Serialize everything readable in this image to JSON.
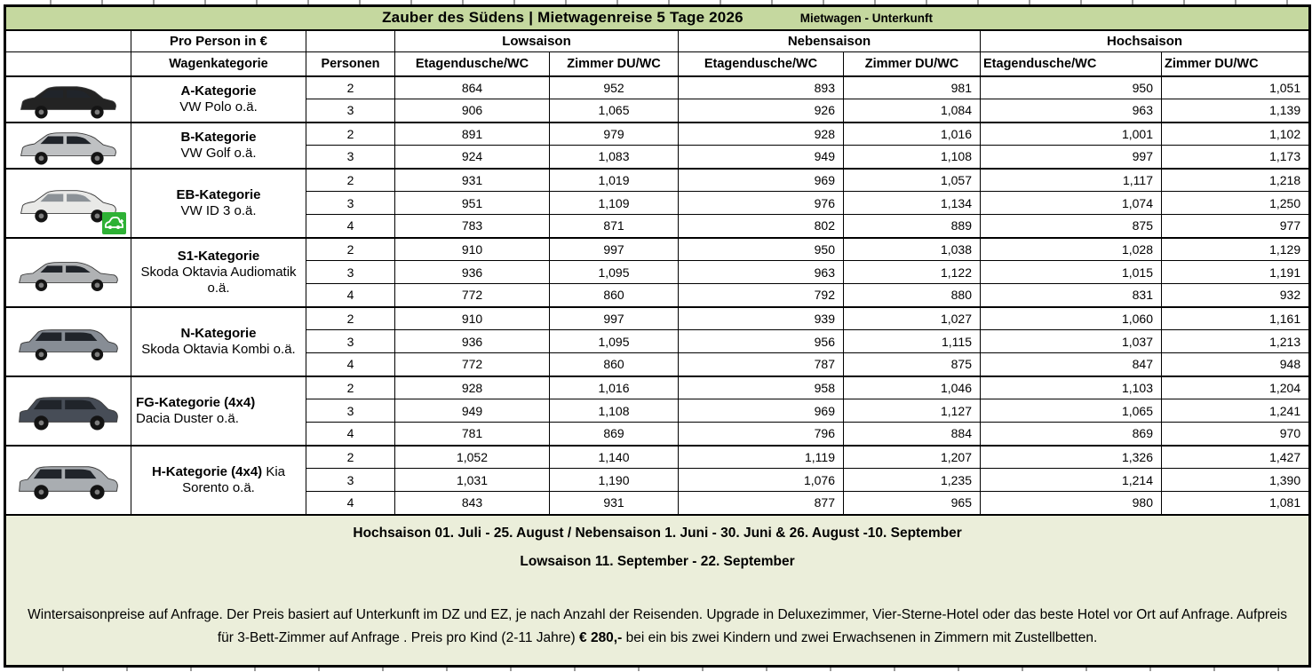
{
  "colors": {
    "band_bg": "#c5d89f",
    "footer_bg": "#ebeeda",
    "ev_green": "#2eb135",
    "grid": "#000000"
  },
  "title_band": {
    "title": "Zauber des Südens | Mietwagenreise 5 Tage  2026",
    "subtitle": "Mietwagen - Unterkunft"
  },
  "header": {
    "pro_person_label": "Pro Person in €",
    "wagenkategorie_label": "Wagenkategorie",
    "personen_label": "Personen",
    "season_labels": [
      "Lowsaison",
      "Nebensaison",
      "Hochsaison"
    ],
    "sub_labels": [
      "Etagendusche/WC",
      "Zimmer DU/WC"
    ]
  },
  "rows": [
    {
      "category": "A-Kategorie",
      "model": "VW Polo o.ä.",
      "label_align": "center",
      "inline": false,
      "ev_badge": false,
      "car": {
        "icon": "car-image-a-kategorie",
        "body": "hatchback",
        "color": "#232323"
      },
      "persons": [
        {
          "n": "2",
          "values": [
            "864",
            "952",
            "893",
            "981",
            "950",
            "1,051"
          ]
        },
        {
          "n": "3",
          "values": [
            "906",
            "1,065",
            "926",
            "1,084",
            "963",
            "1,139"
          ]
        }
      ]
    },
    {
      "category": "B-Kategorie",
      "model": "VW Golf o.ä.",
      "label_align": "center",
      "inline": false,
      "ev_badge": false,
      "car": {
        "icon": "car-image-b-kategorie",
        "body": "hatchback",
        "color": "#bfc1c3"
      },
      "persons": [
        {
          "n": "2",
          "values": [
            "891",
            "979",
            "928",
            "1,016",
            "1,001",
            "1,102"
          ]
        },
        {
          "n": "3",
          "values": [
            "924",
            "1,083",
            "949",
            "1,108",
            "997",
            "1,173"
          ]
        }
      ]
    },
    {
      "category": "EB-Kategorie",
      "model": "VW ID 3 o.ä.",
      "label_align": "center",
      "inline": false,
      "ev_badge": true,
      "car": {
        "icon": "car-image-eb-kategorie",
        "body": "hatchback",
        "color": "#e9e9e7"
      },
      "persons": [
        {
          "n": "2",
          "values": [
            "931",
            "1,019",
            "969",
            "1,057",
            "1,117",
            "1,218"
          ]
        },
        {
          "n": "3",
          "values": [
            "951",
            "1,109",
            "976",
            "1,134",
            "1,074",
            "1,250"
          ]
        },
        {
          "n": "4",
          "values": [
            "783",
            "871",
            "802",
            "889",
            "875",
            "977"
          ]
        }
      ]
    },
    {
      "category": "S1-Kategorie",
      "model": "Skoda Oktavia Audiomatik o.ä.",
      "label_align": "center",
      "inline": false,
      "ev_badge": false,
      "car": {
        "icon": "car-image-s1-kategorie",
        "body": "sedan",
        "color": "#b0b2b4"
      },
      "persons": [
        {
          "n": "2",
          "values": [
            "910",
            "997",
            "950",
            "1,038",
            "1,028",
            "1,129"
          ]
        },
        {
          "n": "3",
          "values": [
            "936",
            "1,095",
            "963",
            "1,122",
            "1,015",
            "1,191"
          ]
        },
        {
          "n": "4",
          "values": [
            "772",
            "860",
            "792",
            "880",
            "831",
            "932"
          ]
        }
      ]
    },
    {
      "category": "N-Kategorie",
      "model": "Skoda Oktavia Kombi o.ä.",
      "label_align": "center",
      "inline": false,
      "ev_badge": false,
      "car": {
        "icon": "car-image-n-kategorie",
        "body": "wagon",
        "color": "#878d95"
      },
      "persons": [
        {
          "n": "2",
          "values": [
            "910",
            "997",
            "939",
            "1,027",
            "1,060",
            "1,161"
          ]
        },
        {
          "n": "3",
          "values": [
            "936",
            "1,095",
            "956",
            "1,115",
            "1,037",
            "1,213"
          ]
        },
        {
          "n": "4",
          "values": [
            "772",
            "860",
            "787",
            "875",
            "847",
            "948"
          ]
        }
      ]
    },
    {
      "category": "FG-Kategorie (4x4)",
      "model": "Dacia Duster o.ä.",
      "label_align": "left",
      "inline": false,
      "ev_badge": false,
      "car": {
        "icon": "car-image-fg-kategorie",
        "body": "suv",
        "color": "#474d57"
      },
      "persons": [
        {
          "n": "2",
          "values": [
            "928",
            "1,016",
            "958",
            "1,046",
            "1,103",
            "1,204"
          ]
        },
        {
          "n": "3",
          "values": [
            "949",
            "1,108",
            "969",
            "1,127",
            "1,065",
            "1,241"
          ]
        },
        {
          "n": "4",
          "values": [
            "781",
            "869",
            "796",
            "884",
            "869",
            "970"
          ]
        }
      ]
    },
    {
      "category": "H-Kategorie (4x4)",
      "model": "Kia Sorento o.ä.",
      "label_align": "center",
      "inline": true,
      "ev_badge": false,
      "car": {
        "icon": "car-image-h-kategorie",
        "body": "suv",
        "color": "#a9adb1"
      },
      "persons": [
        {
          "n": "2",
          "values": [
            "1,052",
            "1,140",
            "1,119",
            "1,207",
            "1,326",
            "1,427"
          ]
        },
        {
          "n": "3",
          "values": [
            "1,031",
            "1,190",
            "1,076",
            "1,235",
            "1,214",
            "1,390"
          ]
        },
        {
          "n": "4",
          "values": [
            "843",
            "931",
            "877",
            "965",
            "980",
            "1,081"
          ]
        }
      ]
    }
  ],
  "footer": {
    "season_line1": "Hochsaison 01. Juli - 25. August / Nebensaison 1. Juni - 30. Juni & 26. August -10. September",
    "season_line2": "Lowsaison 11. September - 22. September",
    "note_before": "Wintersaisonpreise auf Anfrage. Der Preis basiert auf Unterkunft im DZ und EZ, je nach Anzahl der Reisenden. Upgrade in Deluxezimmer, Vier-Sterne-Hotel oder das beste Hotel vor Ort auf Anfrage. Aufpreis für 3-Bett-Zimmer auf Anfrage . Preis pro Kind (2-11 Jahre) ",
    "note_bold": "€ 280,-",
    "note_after": " bei ein bis zwei Kindern und zwei Erwachsenen in Zimmern mit Zustellbetten."
  }
}
